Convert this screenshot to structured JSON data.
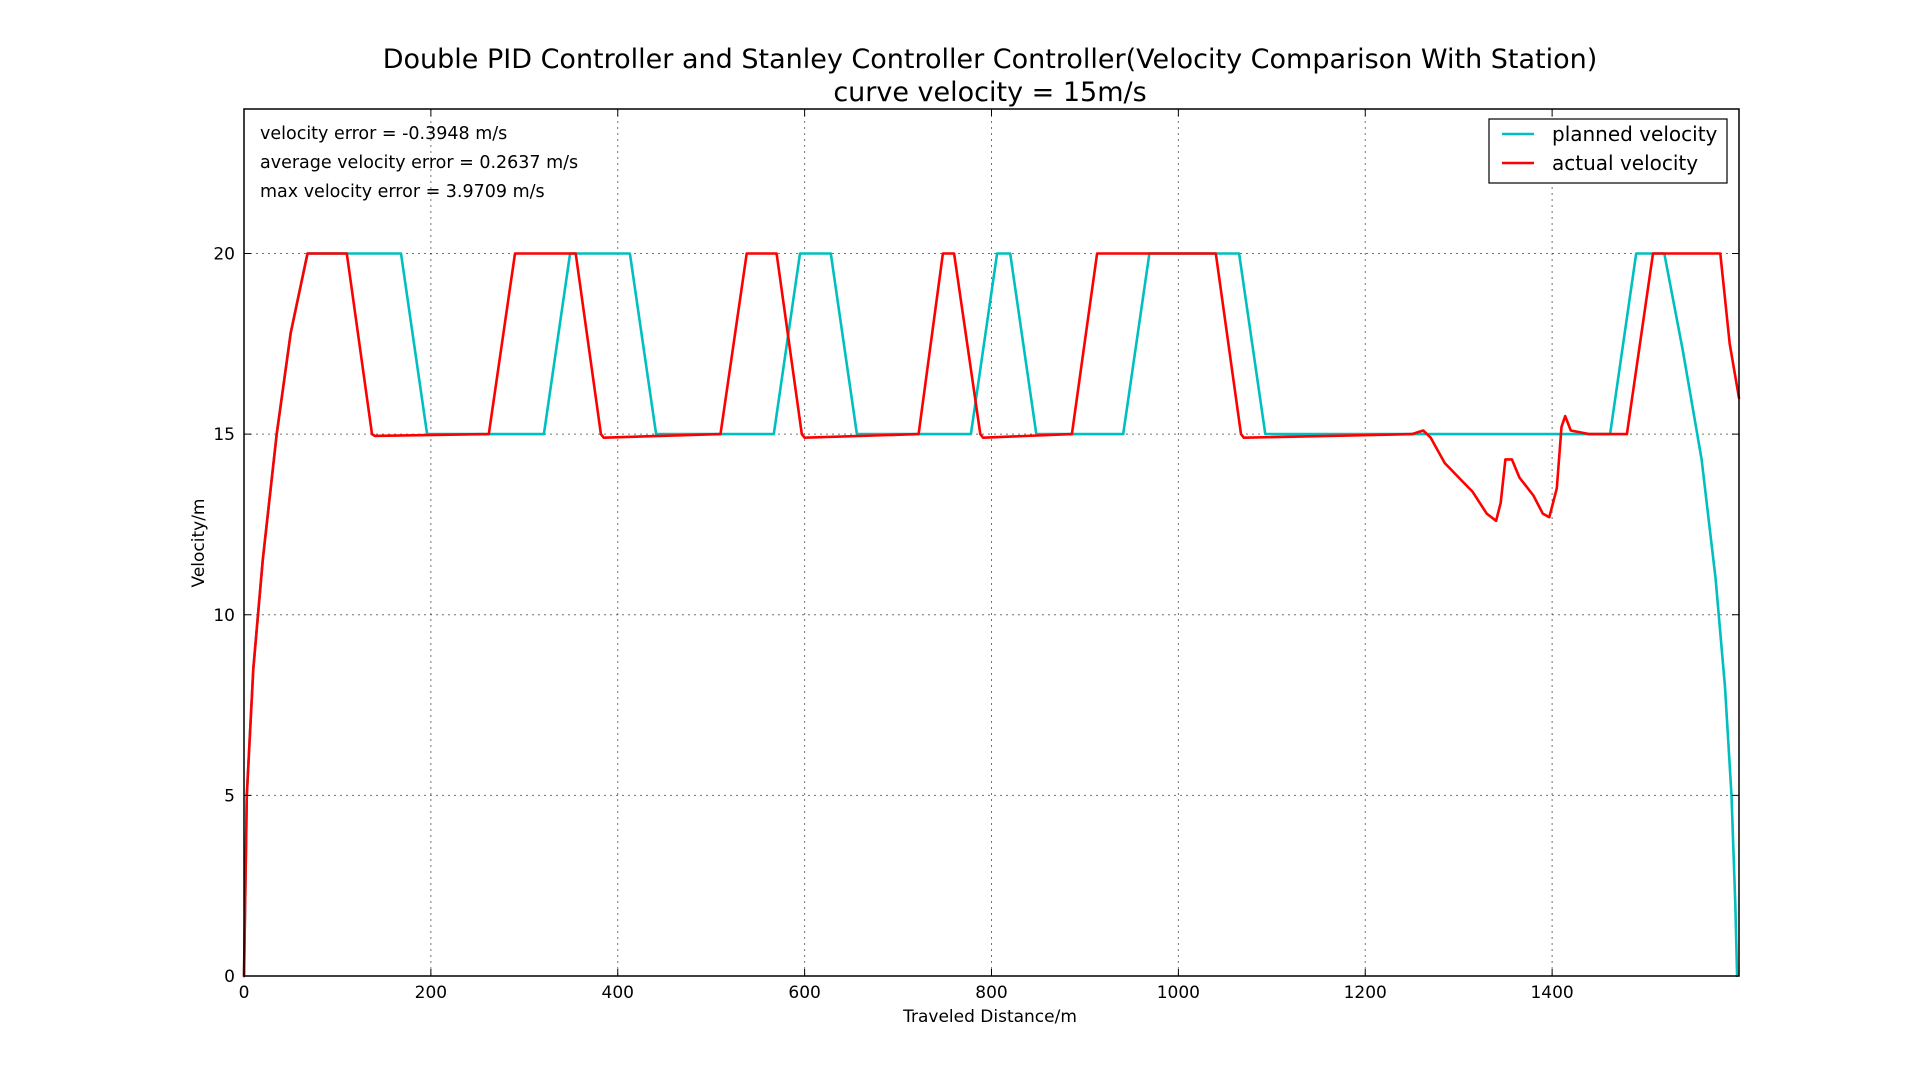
{
  "chart_data": {
    "type": "line",
    "title": "Double PID Controller and Stanley Controller Controller(Velocity Comparison With Station)",
    "subtitle": "curve velocity = 15m/s",
    "xlabel": "Traveled Distance/m",
    "ylabel": "Velocity/m",
    "xlim": [
      0,
      1600
    ],
    "ylim": [
      0,
      24
    ],
    "xticks": [
      0,
      200,
      400,
      600,
      800,
      1000,
      1200,
      1400
    ],
    "yticks": [
      0,
      5,
      10,
      15,
      20
    ],
    "grid": true,
    "legend_position": "top-right",
    "annotations": [
      "velocity error = -0.3948 m/s",
      "average velocity error = 0.2637 m/s",
      "max velocity error = 3.9709 m/s"
    ],
    "series": [
      {
        "name": "planned velocity",
        "color": "#00bfbf",
        "points": [
          [
            0,
            0
          ],
          [
            3,
            5
          ],
          [
            10,
            8.5
          ],
          [
            20,
            11.5
          ],
          [
            35,
            15
          ],
          [
            50,
            17.8
          ],
          [
            68,
            20
          ],
          [
            168,
            20
          ],
          [
            196,
            15
          ],
          [
            321,
            15
          ],
          [
            349,
            20
          ],
          [
            413,
            20
          ],
          [
            441,
            15
          ],
          [
            567,
            15
          ],
          [
            595,
            20
          ],
          [
            628,
            20
          ],
          [
            656,
            15
          ],
          [
            778,
            15
          ],
          [
            806,
            20
          ],
          [
            820,
            20
          ],
          [
            848,
            15
          ],
          [
            941,
            15
          ],
          [
            969,
            20
          ],
          [
            1065,
            20
          ],
          [
            1093,
            15
          ],
          [
            1462,
            15
          ],
          [
            1490,
            20
          ],
          [
            1520,
            20
          ],
          [
            1540,
            17.3
          ],
          [
            1560,
            14.3
          ],
          [
            1575,
            11
          ],
          [
            1585,
            8
          ],
          [
            1592,
            5
          ],
          [
            1596,
            2
          ],
          [
            1598,
            0
          ]
        ]
      },
      {
        "name": "actual velocity",
        "color": "#ff0000",
        "points": [
          [
            0,
            0
          ],
          [
            3,
            5
          ],
          [
            10,
            8.5
          ],
          [
            20,
            11.5
          ],
          [
            35,
            15
          ],
          [
            50,
            17.8
          ],
          [
            68,
            20
          ],
          [
            72,
            20
          ],
          [
            110,
            20
          ],
          [
            137,
            15
          ],
          [
            140,
            14.95
          ],
          [
            262,
            15
          ],
          [
            290,
            20
          ],
          [
            355,
            20
          ],
          [
            382,
            15
          ],
          [
            385,
            14.9
          ],
          [
            510,
            15
          ],
          [
            538,
            20
          ],
          [
            570,
            20
          ],
          [
            597,
            15
          ],
          [
            600,
            14.9
          ],
          [
            722,
            15
          ],
          [
            748,
            20
          ],
          [
            760,
            20
          ],
          [
            788,
            15
          ],
          [
            791,
            14.9
          ],
          [
            886,
            15
          ],
          [
            913,
            20
          ],
          [
            1040,
            20
          ],
          [
            1067,
            15
          ],
          [
            1070,
            14.9
          ],
          [
            1250,
            15
          ],
          [
            1262,
            15.1
          ],
          [
            1270,
            14.9
          ],
          [
            1285,
            14.2
          ],
          [
            1300,
            13.8
          ],
          [
            1315,
            13.4
          ],
          [
            1330,
            12.8
          ],
          [
            1340,
            12.6
          ],
          [
            1345,
            13.1
          ],
          [
            1350,
            14.3
          ],
          [
            1357,
            14.3
          ],
          [
            1365,
            13.8
          ],
          [
            1380,
            13.3
          ],
          [
            1390,
            12.8
          ],
          [
            1397,
            12.7
          ],
          [
            1405,
            13.5
          ],
          [
            1410,
            15.2
          ],
          [
            1414,
            15.5
          ],
          [
            1420,
            15.1
          ],
          [
            1440,
            15
          ],
          [
            1480,
            15
          ],
          [
            1508,
            20
          ],
          [
            1520,
            20
          ],
          [
            1580,
            20
          ],
          [
            1590,
            17.5
          ],
          [
            1600,
            16
          ]
        ]
      }
    ]
  }
}
